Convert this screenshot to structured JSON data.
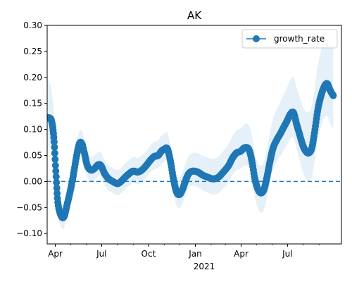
{
  "chart_data": {
    "type": "line",
    "title": "AK",
    "xlabel": "",
    "ylabel": "",
    "x_range": [
      "2020-03-16",
      "2021-10-15"
    ],
    "ylim": [
      -0.12,
      0.3
    ],
    "x_tick_labels": [
      {
        "date": "2020-04-01",
        "label": "Apr"
      },
      {
        "date": "2020-07-01",
        "label": "Jul"
      },
      {
        "date": "2020-10-01",
        "label": "Oct"
      },
      {
        "date": "2021-01-01",
        "label": "Jan"
      },
      {
        "date": "2021-04-01",
        "label": "Apr"
      },
      {
        "date": "2021-07-01",
        "label": "Jul"
      }
    ],
    "x_year_label": {
      "date": "2021-01-01",
      "label": "2021"
    },
    "minor_tick_dates": [
      "2020-05-01",
      "2020-06-01",
      "2020-08-01",
      "2020-09-01",
      "2020-11-01",
      "2020-12-01",
      "2021-02-01",
      "2021-03-01",
      "2021-05-01",
      "2021-06-01",
      "2021-08-01",
      "2021-09-01"
    ],
    "y_ticks": [
      -0.1,
      -0.05,
      0.0,
      0.05,
      0.1,
      0.15,
      0.2,
      0.25,
      0.3
    ],
    "y_tick_labels": [
      "−0.10",
      "−0.05",
      "0.00",
      "0.05",
      "0.10",
      "0.15",
      "0.20",
      "0.25",
      "0.30"
    ],
    "reference_line": {
      "y": 0.0,
      "style": "dashed"
    },
    "legend": {
      "position": "top-right",
      "label": "growth_rate"
    },
    "color": "#1f77b4",
    "band_color": "#dce9f5",
    "series": [
      {
        "name": "growth_rate",
        "points": [
          [
            "2020-03-16",
            0.122
          ],
          [
            "2020-03-21",
            0.122
          ],
          [
            "2020-03-25",
            0.115
          ],
          [
            "2020-03-29",
            0.085
          ],
          [
            "2020-04-02",
            0.02
          ],
          [
            "2020-04-06",
            -0.04
          ],
          [
            "2020-04-12",
            -0.065
          ],
          [
            "2020-04-18",
            -0.068
          ],
          [
            "2020-04-24",
            -0.045
          ],
          [
            "2020-04-30",
            -0.02
          ],
          [
            "2020-05-06",
            0.01
          ],
          [
            "2020-05-12",
            0.045
          ],
          [
            "2020-05-18",
            0.072
          ],
          [
            "2020-05-23",
            0.073
          ],
          [
            "2020-05-28",
            0.055
          ],
          [
            "2020-06-03",
            0.03
          ],
          [
            "2020-06-10",
            0.022
          ],
          [
            "2020-06-17",
            0.025
          ],
          [
            "2020-06-24",
            0.032
          ],
          [
            "2020-06-30",
            0.03
          ],
          [
            "2020-07-07",
            0.015
          ],
          [
            "2020-07-15",
            0.005
          ],
          [
            "2020-07-23",
            0.0
          ],
          [
            "2020-08-01",
            -0.004
          ],
          [
            "2020-08-08",
            0.0
          ],
          [
            "2020-08-16",
            0.008
          ],
          [
            "2020-08-24",
            0.015
          ],
          [
            "2020-09-01",
            0.02
          ],
          [
            "2020-09-10",
            0.018
          ],
          [
            "2020-09-18",
            0.022
          ],
          [
            "2020-09-26",
            0.03
          ],
          [
            "2020-10-04",
            0.04
          ],
          [
            "2020-10-12",
            0.048
          ],
          [
            "2020-10-20",
            0.05
          ],
          [
            "2020-10-26",
            0.058
          ],
          [
            "2020-11-01",
            0.062
          ],
          [
            "2020-11-07",
            0.063
          ],
          [
            "2020-11-13",
            0.04
          ],
          [
            "2020-11-19",
            0.005
          ],
          [
            "2020-11-25",
            -0.02
          ],
          [
            "2020-12-01",
            -0.025
          ],
          [
            "2020-12-07",
            -0.015
          ],
          [
            "2020-12-13",
            0.002
          ],
          [
            "2020-12-19",
            0.015
          ],
          [
            "2020-12-27",
            0.02
          ],
          [
            "2021-01-06",
            0.018
          ],
          [
            "2021-01-16",
            0.012
          ],
          [
            "2021-01-26",
            0.008
          ],
          [
            "2021-02-05",
            0.005
          ],
          [
            "2021-02-15",
            0.008
          ],
          [
            "2021-02-25",
            0.018
          ],
          [
            "2021-03-07",
            0.03
          ],
          [
            "2021-03-15",
            0.045
          ],
          [
            "2021-03-23",
            0.055
          ],
          [
            "2021-03-31",
            0.058
          ],
          [
            "2021-04-08",
            0.065
          ],
          [
            "2021-04-16",
            0.062
          ],
          [
            "2021-04-22",
            0.04
          ],
          [
            "2021-04-28",
            0.005
          ],
          [
            "2021-05-04",
            -0.015
          ],
          [
            "2021-05-10",
            -0.022
          ],
          [
            "2021-05-16",
            -0.015
          ],
          [
            "2021-05-22",
            0.01
          ],
          [
            "2021-05-28",
            0.04
          ],
          [
            "2021-06-03",
            0.065
          ],
          [
            "2021-06-10",
            0.08
          ],
          [
            "2021-06-17",
            0.092
          ],
          [
            "2021-06-24",
            0.105
          ],
          [
            "2021-07-01",
            0.118
          ],
          [
            "2021-07-07",
            0.13
          ],
          [
            "2021-07-13",
            0.132
          ],
          [
            "2021-07-19",
            0.11
          ],
          [
            "2021-07-25",
            0.09
          ],
          [
            "2021-07-31",
            0.07
          ],
          [
            "2021-08-06",
            0.058
          ],
          [
            "2021-08-12",
            0.055
          ],
          [
            "2021-08-18",
            0.065
          ],
          [
            "2021-08-24",
            0.1
          ],
          [
            "2021-08-30",
            0.14
          ],
          [
            "2021-09-05",
            0.165
          ],
          [
            "2021-09-11",
            0.182
          ],
          [
            "2021-09-17",
            0.188
          ],
          [
            "2021-09-23",
            0.175
          ],
          [
            "2021-09-29",
            0.165
          ]
        ]
      }
    ]
  }
}
